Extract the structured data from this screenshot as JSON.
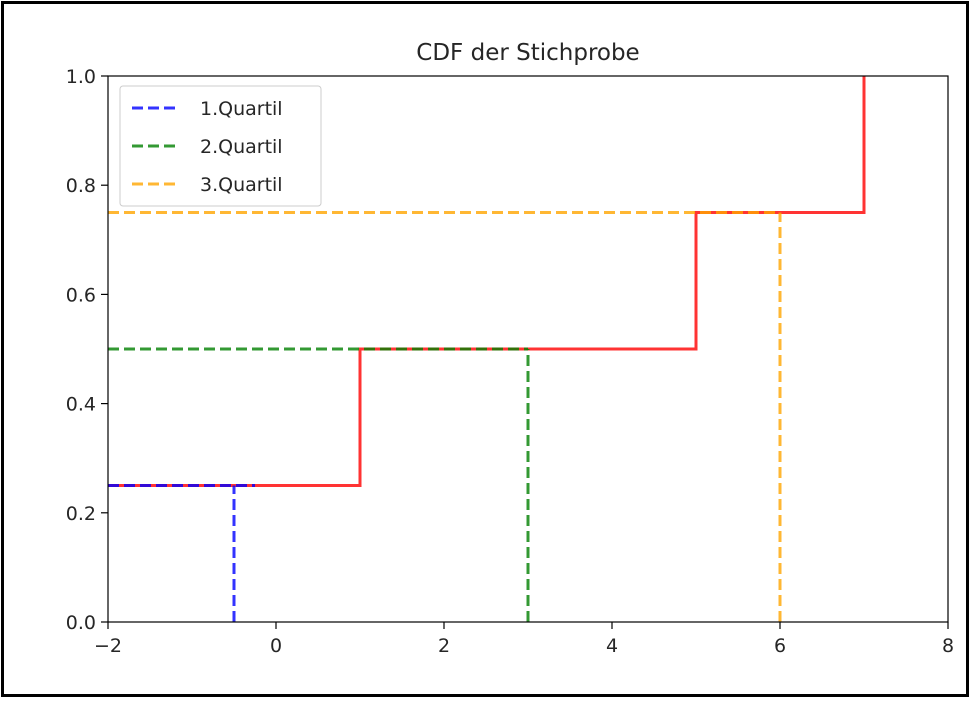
{
  "chart_data": {
    "type": "line",
    "title": "CDF der Stichprobe",
    "xlabel": "",
    "ylabel": "",
    "xlim": [
      -2,
      8
    ],
    "ylim": [
      0,
      1
    ],
    "x_ticks": [
      "−2",
      "0",
      "2",
      "4",
      "6",
      "8"
    ],
    "y_ticks": [
      "0.0",
      "0.2",
      "0.4",
      "0.6",
      "0.8",
      "1.0"
    ],
    "grid": false,
    "legend_position": "top-left",
    "cdf": {
      "color": "#ff0000",
      "steps": [
        {
          "x": -2,
          "y": 0.25
        },
        {
          "x": 1,
          "y": 0.25
        },
        {
          "x": 1,
          "y": 0.5
        },
        {
          "x": 5,
          "y": 0.5
        },
        {
          "x": 5,
          "y": 0.75
        },
        {
          "x": 7,
          "y": 0.75
        },
        {
          "x": 7,
          "y": 1.0
        }
      ]
    },
    "series": [
      {
        "name": "1.Quartil",
        "color": "#0000ff",
        "x": -0.5,
        "y": 0.25,
        "h_end_x": -0.25
      },
      {
        "name": "2.Quartil",
        "color": "#008000",
        "x": 3,
        "y": 0.5,
        "h_end_x": 3
      },
      {
        "name": "3.Quartil",
        "color": "#ffa500",
        "x": 6,
        "y": 0.75,
        "h_end_x": 6
      }
    ]
  }
}
